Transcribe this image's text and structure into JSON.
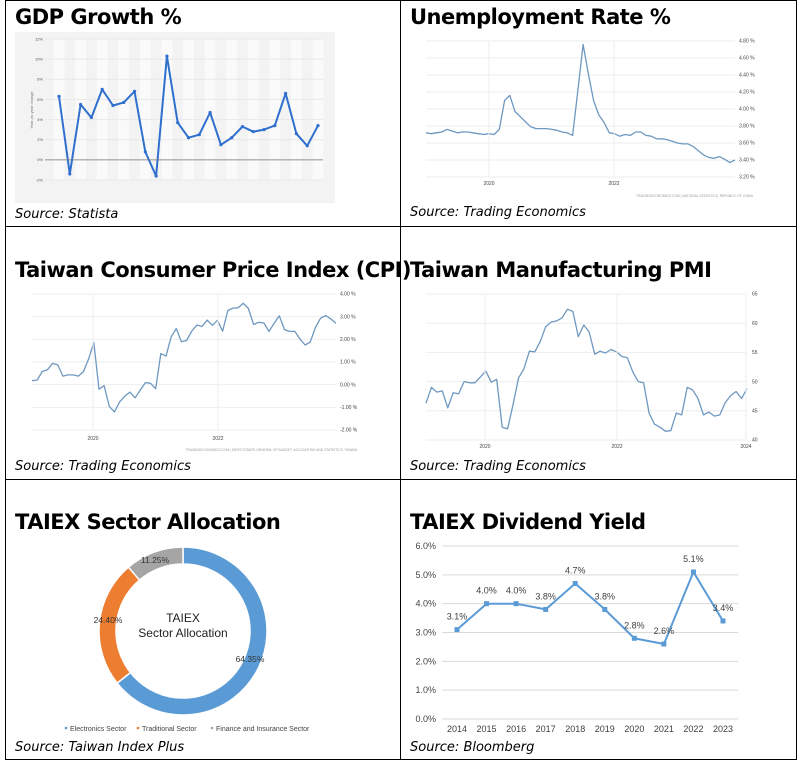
{
  "panels": {
    "gdp": {
      "title": "GDP Growth %",
      "source": "Source: Statista"
    },
    "unemp": {
      "title": "Unemployment Rate %",
      "source": "Source: Trading Economics"
    },
    "cpi": {
      "title": "Taiwan Consumer Price Index (CPI)",
      "source": "Source: Trading Economics"
    },
    "pmi": {
      "title": "Taiwan Manufacturing PMI",
      "source": "Source: Trading Economics"
    },
    "sector": {
      "title": "TAIEX Sector Allocation",
      "source": "Source: Taiwan Index Plus"
    },
    "div": {
      "title": "TAIEX Dividend Yield",
      "source": "Source: Bloomberg"
    }
  },
  "chart_data": [
    {
      "id": "gdp",
      "type": "line",
      "ylabel": "Year-on-year change",
      "ylim": [
        -2,
        12
      ],
      "yticks": [
        "-2%",
        "0%",
        "2%",
        "4%",
        "6%",
        "8%",
        "10%",
        "12%"
      ],
      "ytick_values": [
        -2,
        0,
        2,
        4,
        6,
        8,
        10,
        12
      ],
      "grid": true,
      "color": "#2f6fce",
      "values": [
        6.3,
        -1.4,
        5.5,
        4.2,
        7.0,
        5.4,
        5.7,
        6.8,
        0.8,
        -1.6,
        10.3,
        3.7,
        2.2,
        2.5,
        4.7,
        1.5,
        2.2,
        3.3,
        2.8,
        3.0,
        3.4,
        6.6,
        2.6,
        1.4,
        3.4
      ]
    },
    {
      "id": "unemp",
      "type": "line",
      "x_start": "2019-01",
      "x_freq": "monthly",
      "xticks": [
        "2020",
        "2022"
      ],
      "ylim": [
        3.2,
        4.8
      ],
      "yticks": [
        "3.20 %",
        "3.40 %",
        "3.60 %",
        "3.80 %",
        "4.00 %",
        "4.20 %",
        "4.40 %",
        "4.60 %",
        "4.80 %"
      ],
      "ytick_values": [
        3.2,
        3.4,
        3.6,
        3.8,
        4.0,
        4.2,
        4.4,
        4.6,
        4.8
      ],
      "credit": "TRADINGECONOMICS.COM | NATIONAL STATISTICS, REPUBLIC OF CHINA",
      "color": "#6f98c0",
      "values": [
        3.72,
        3.71,
        3.72,
        3.73,
        3.76,
        3.74,
        3.72,
        3.73,
        3.73,
        3.72,
        3.71,
        3.7,
        3.71,
        3.7,
        3.76,
        4.1,
        4.16,
        3.97,
        3.91,
        3.85,
        3.79,
        3.77,
        3.77,
        3.77,
        3.76,
        3.75,
        3.73,
        3.72,
        3.69,
        4.22,
        4.76,
        4.41,
        4.1,
        3.93,
        3.84,
        3.72,
        3.71,
        3.68,
        3.7,
        3.69,
        3.73,
        3.73,
        3.69,
        3.68,
        3.65,
        3.65,
        3.64,
        3.62,
        3.6,
        3.59,
        3.59,
        3.56,
        3.51,
        3.46,
        3.43,
        3.42,
        3.44,
        3.41,
        3.37,
        3.4
      ]
    },
    {
      "id": "cpi",
      "type": "line",
      "x_start": "2019-01",
      "x_freq": "monthly",
      "xticks": [
        "2020",
        "2022"
      ],
      "ylim": [
        -2,
        4
      ],
      "yticks": [
        "-2.00 %",
        "-1.00 %",
        "0.00 %",
        "1.00 %",
        "2.00 %",
        "3.00 %",
        "4.00 %"
      ],
      "ytick_values": [
        -2,
        -1,
        0,
        1,
        2,
        3,
        4
      ],
      "credit": "TRADINGECONOMICS.COM | DIRECTORATE-GENERAL OF BUDGET, ACCOUNTING AND STATISTICS, TAIWAN",
      "color": "#6f98c0",
      "values": [
        0.18,
        0.2,
        0.58,
        0.66,
        0.94,
        0.87,
        0.38,
        0.43,
        0.43,
        0.38,
        0.58,
        1.14,
        1.86,
        -0.2,
        -0.04,
        -0.96,
        -1.2,
        -0.76,
        -0.51,
        -0.33,
        -0.58,
        -0.24,
        0.09,
        0.06,
        -0.18,
        1.37,
        1.26,
        2.1,
        2.48,
        1.89,
        1.95,
        2.36,
        2.63,
        2.57,
        2.85,
        2.62,
        2.84,
        2.36,
        3.27,
        3.38,
        3.39,
        3.59,
        3.36,
        2.66,
        2.75,
        2.72,
        2.35,
        2.71,
        3.04,
        2.43,
        2.35,
        2.35,
        2.02,
        1.75,
        1.88,
        2.52,
        2.93,
        3.05,
        2.9,
        2.71
      ]
    },
    {
      "id": "pmi",
      "type": "line",
      "x_start": "2019-02",
      "x_freq": "monthly",
      "xticks": [
        "2020",
        "2022",
        "2024"
      ],
      "ylim": [
        40,
        65
      ],
      "yticks": [
        "40",
        "45",
        "50",
        "55",
        "60",
        "65"
      ],
      "ytick_values": [
        40,
        45,
        50,
        55,
        60,
        65
      ],
      "color": "#6f98c0",
      "values": [
        46.3,
        49.0,
        48.2,
        48.4,
        45.5,
        48.1,
        47.9,
        50.0,
        49.8,
        49.8,
        50.8,
        51.8,
        49.9,
        50.4,
        42.2,
        41.9,
        46.1,
        50.6,
        52.2,
        55.2,
        55.1,
        56.9,
        59.4,
        60.2,
        60.4,
        60.9,
        62.4,
        62.0,
        57.7,
        59.7,
        58.5,
        54.7,
        55.2,
        54.9,
        55.5,
        55.1,
        54.3,
        54.1,
        51.7,
        50.0,
        49.8,
        44.6,
        42.7,
        42.2,
        41.5,
        41.6,
        44.6,
        44.3,
        49.0,
        48.6,
        47.1,
        44.3,
        44.8,
        44.1,
        44.3,
        46.4,
        47.6,
        48.3,
        47.1,
        48.8
      ]
    },
    {
      "id": "sector",
      "type": "pie",
      "donut": true,
      "center_label": [
        "TAIEX",
        "Sector Allocation"
      ],
      "legend": "bottom",
      "slices": [
        {
          "name": "Electronics Sector",
          "value": 64.35,
          "label": "64.35%",
          "color": "#5b9bd5"
        },
        {
          "name": "Traditional Sector",
          "value": 24.4,
          "label": "24.40%",
          "color": "#ed7d31"
        },
        {
          "name": "Finance and Insurance Sector",
          "value": 11.25,
          "label": "11.25%",
          "color": "#a5a5a5"
        }
      ]
    },
    {
      "id": "div",
      "type": "line",
      "categories": [
        "2014",
        "2015",
        "2016",
        "2017",
        "2018",
        "2019",
        "2020",
        "2021",
        "2022",
        "2023"
      ],
      "values": [
        3.1,
        4.0,
        4.0,
        3.8,
        4.7,
        3.8,
        2.8,
        2.6,
        5.1,
        3.4
      ],
      "labels": [
        "3.1%",
        "4.0%",
        "4.0%",
        "3.8%",
        "4.7%",
        "3.8%",
        "2.8%",
        "2.6%",
        "5.1%",
        "3.4%"
      ],
      "ylim": [
        0,
        6
      ],
      "yticks": [
        "0.0%",
        "1.0%",
        "2.0%",
        "3.0%",
        "4.0%",
        "5.0%",
        "6.0%"
      ],
      "ytick_values": [
        0,
        1,
        2,
        3,
        4,
        5,
        6
      ],
      "grid": true,
      "color": "#5b9bd5"
    }
  ]
}
